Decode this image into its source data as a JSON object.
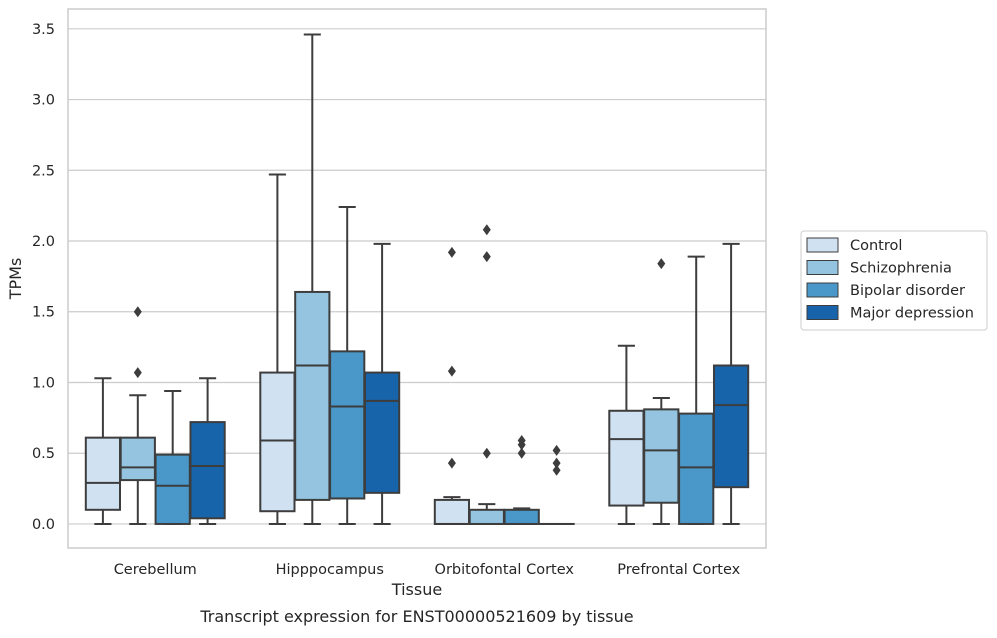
{
  "chart_data": {
    "type": "box",
    "title": "",
    "caption": "Transcript expression for ENST00000521609 by tissue",
    "xlabel": "Tissue",
    "ylabel": "TPMs",
    "ylim": [
      -0.17,
      3.64
    ],
    "yticks": [
      "0.0",
      "0.5",
      "1.0",
      "1.5",
      "2.0",
      "2.5",
      "3.0",
      "3.5"
    ],
    "grid": "horizontal",
    "legend_position": "right",
    "categories": [
      "Cerebellum",
      "Hipppocampus",
      "Orbitofontal Cortex",
      "Prefrontal Cortex"
    ],
    "series": [
      {
        "name": "Control",
        "color": "#d0e1f2",
        "boxes": [
          {
            "whislo": 0.0,
            "q1": 0.1,
            "med": 0.29,
            "q3": 0.61,
            "whishi": 1.03,
            "fliers": []
          },
          {
            "whislo": 0.0,
            "q1": 0.09,
            "med": 0.59,
            "q3": 1.07,
            "whishi": 2.47,
            "fliers": []
          },
          {
            "whislo": 0.0,
            "q1": 0.0,
            "med": 0.0,
            "q3": 0.17,
            "whishi": 0.19,
            "fliers": [
              0.43,
              1.08,
              1.92
            ]
          },
          {
            "whislo": 0.0,
            "q1": 0.13,
            "med": 0.6,
            "q3": 0.8,
            "whishi": 1.26,
            "fliers": []
          }
        ]
      },
      {
        "name": "Schizophrenia",
        "color": "#94c4df",
        "boxes": [
          {
            "whislo": 0.0,
            "q1": 0.31,
            "med": 0.4,
            "q3": 0.61,
            "whishi": 0.91,
            "fliers": [
              1.07,
              1.5
            ]
          },
          {
            "whislo": 0.0,
            "q1": 0.17,
            "med": 1.12,
            "q3": 1.64,
            "whishi": 3.46,
            "fliers": []
          },
          {
            "whislo": 0.0,
            "q1": 0.0,
            "med": 0.0,
            "q3": 0.1,
            "whishi": 0.14,
            "fliers": [
              0.5,
              1.89,
              2.08
            ]
          },
          {
            "whislo": 0.0,
            "q1": 0.15,
            "med": 0.52,
            "q3": 0.81,
            "whishi": 0.89,
            "fliers": [
              1.84
            ]
          }
        ]
      },
      {
        "name": "Bipolar disorder",
        "color": "#4a98c9",
        "boxes": [
          {
            "whislo": 0.0,
            "q1": 0.0,
            "med": 0.27,
            "q3": 0.49,
            "whishi": 0.94,
            "fliers": []
          },
          {
            "whislo": 0.0,
            "q1": 0.18,
            "med": 0.83,
            "q3": 1.22,
            "whishi": 2.24,
            "fliers": []
          },
          {
            "whislo": 0.0,
            "q1": 0.0,
            "med": 0.0,
            "q3": 0.1,
            "whishi": 0.11,
            "fliers": [
              0.5,
              0.56,
              0.59
            ]
          },
          {
            "whislo": 0.0,
            "q1": 0.0,
            "med": 0.4,
            "q3": 0.78,
            "whishi": 1.89,
            "fliers": []
          }
        ]
      },
      {
        "name": "Major depression",
        "color": "#1764ab",
        "boxes": [
          {
            "whislo": 0.0,
            "q1": 0.04,
            "med": 0.41,
            "q3": 0.72,
            "whishi": 1.03,
            "fliers": []
          },
          {
            "whislo": 0.0,
            "q1": 0.22,
            "med": 0.87,
            "q3": 1.07,
            "whishi": 1.98,
            "fliers": []
          },
          {
            "whislo": 0.0,
            "q1": 0.0,
            "med": 0.0,
            "q3": 0.0,
            "whishi": 0.0,
            "fliers": [
              0.38,
              0.43,
              0.52
            ]
          },
          {
            "whislo": 0.0,
            "q1": 0.26,
            "med": 0.84,
            "q3": 1.12,
            "whishi": 1.98,
            "fliers": []
          }
        ]
      }
    ]
  }
}
